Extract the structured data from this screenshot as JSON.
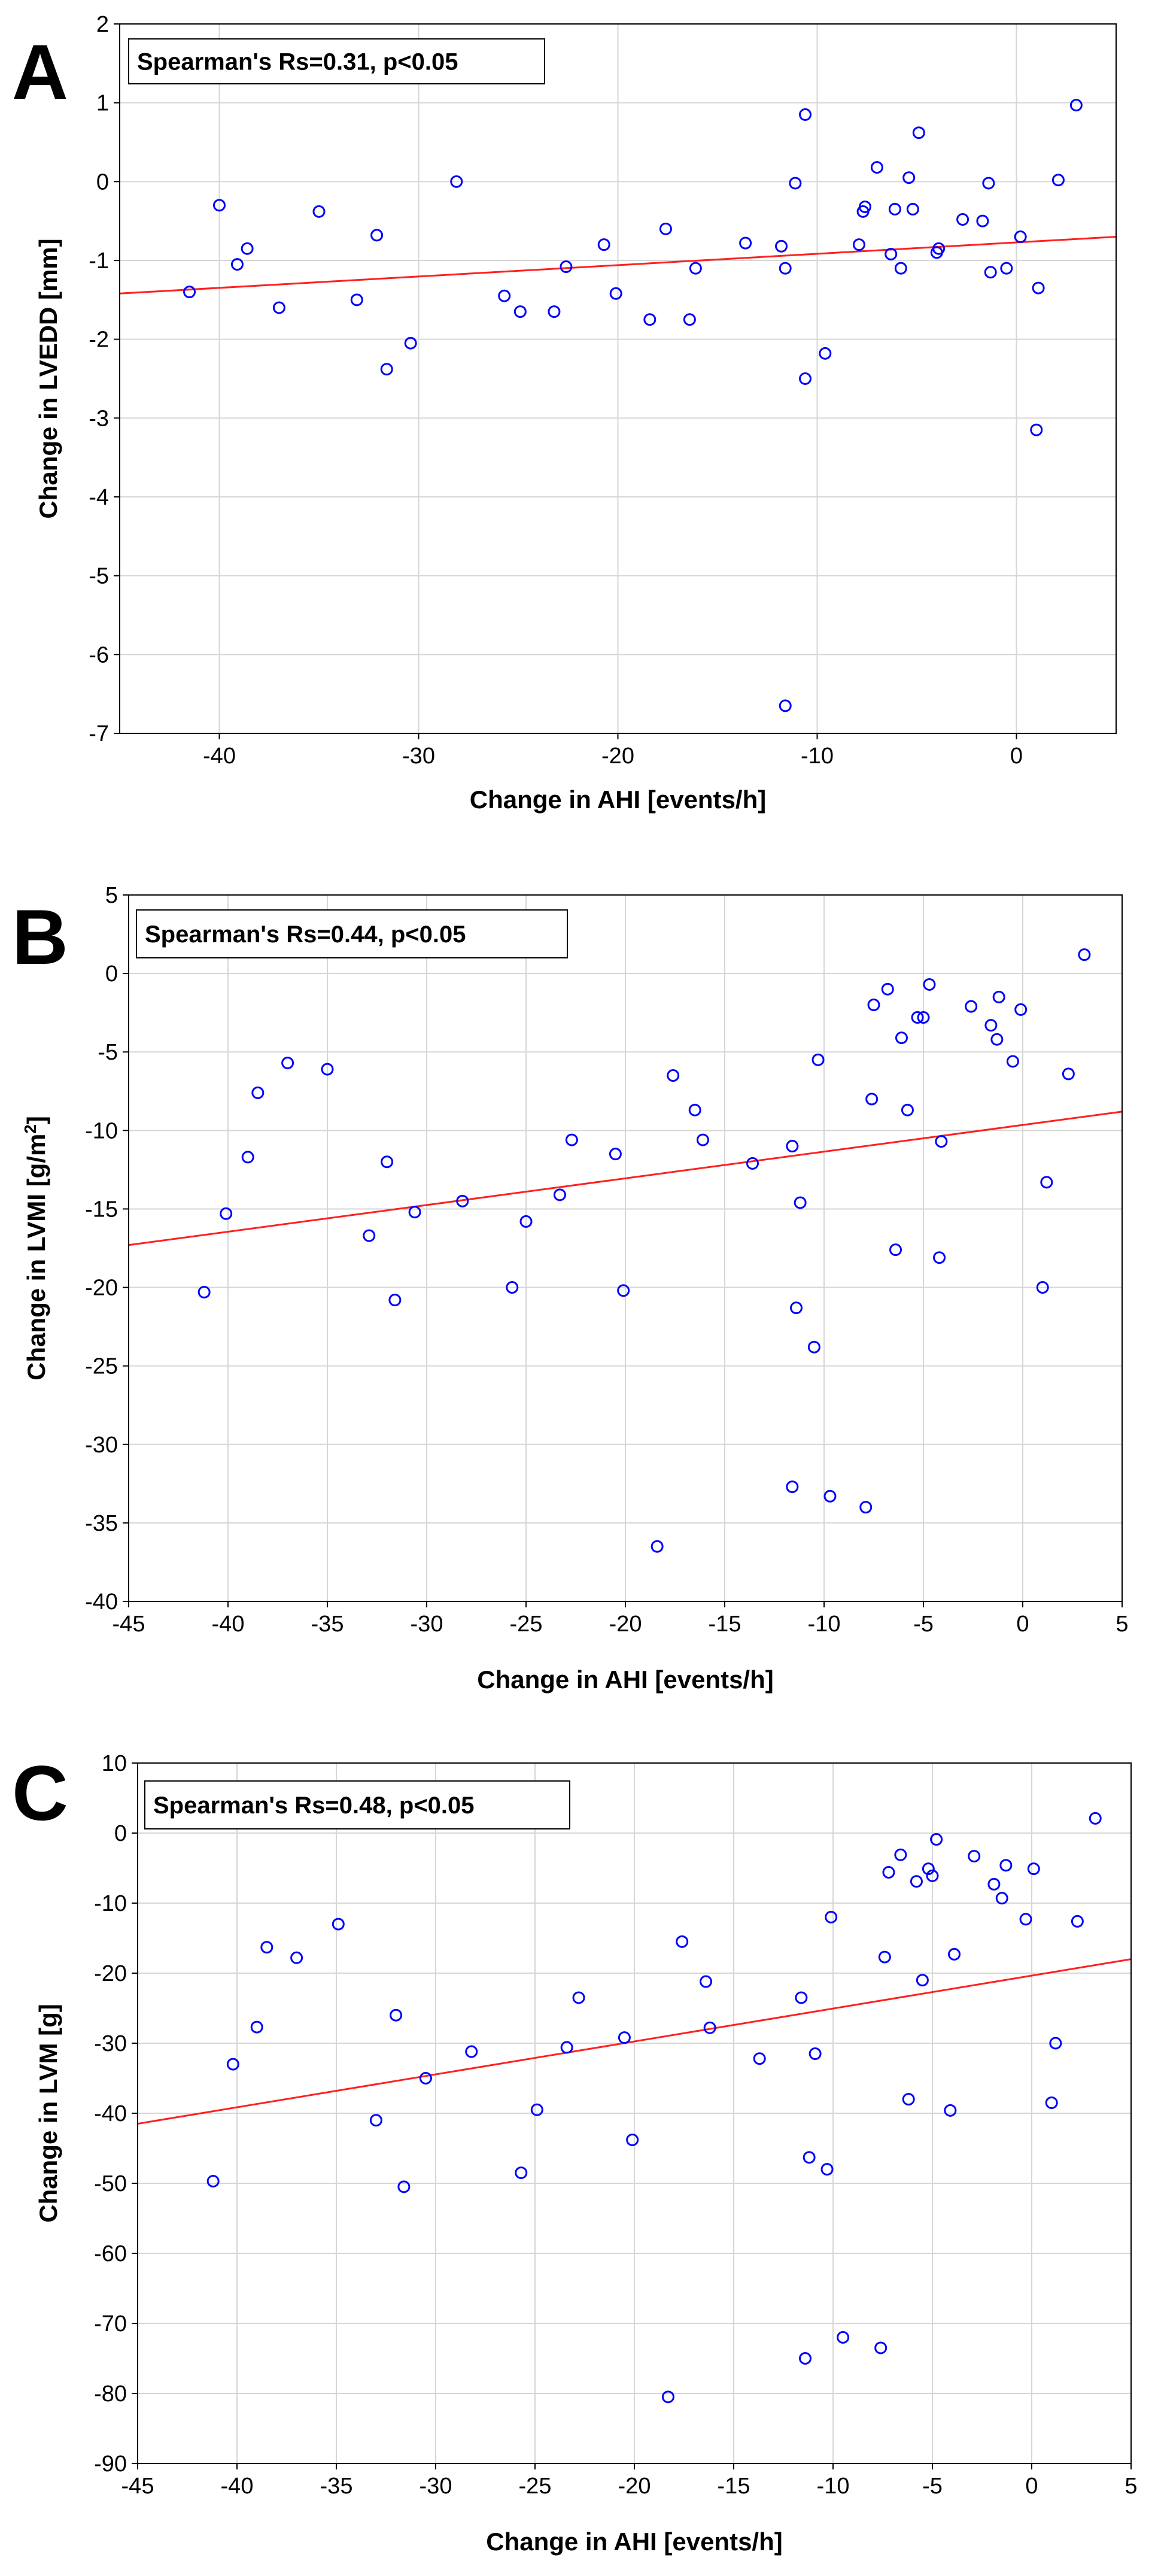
{
  "chart_data": [
    {
      "type": "scatter",
      "panel": "A",
      "annotation": "Spearman's Rs=0.31, p<0.05",
      "xlabel": "Change in AHI [events/h]",
      "ylabel": "Change in LVEDD [mm]",
      "xlim": [
        -45,
        5
      ],
      "ylim": [
        -7,
        2
      ],
      "xticks": [
        -40,
        -30,
        -20,
        -10,
        0
      ],
      "yticks": [
        -7,
        -6,
        -5,
        -4,
        -3,
        -2,
        -1,
        0,
        1,
        2
      ],
      "trend": {
        "x1": -45,
        "y1": -1.42,
        "x2": 5,
        "y2": -0.7
      },
      "points": [
        [
          -41.5,
          -1.4
        ],
        [
          -40,
          -0.3
        ],
        [
          -39.1,
          -1.05
        ],
        [
          -38.6,
          -0.85
        ],
        [
          -37,
          -1.6
        ],
        [
          -35,
          -0.38
        ],
        [
          -33.1,
          -1.5
        ],
        [
          -32.1,
          -0.68
        ],
        [
          -31.6,
          -2.38
        ],
        [
          -30.4,
          -2.05
        ],
        [
          -28.1,
          0.0
        ],
        [
          -25.7,
          -1.45
        ],
        [
          -24.9,
          -1.65
        ],
        [
          -23.2,
          -1.65
        ],
        [
          -22.6,
          -1.08
        ],
        [
          -20.7,
          -0.8
        ],
        [
          -20.1,
          -1.42
        ],
        [
          -18.4,
          -1.75
        ],
        [
          -17.6,
          -0.6
        ],
        [
          -16.4,
          -1.75
        ],
        [
          -16.1,
          -1.1
        ],
        [
          -13.6,
          -0.78
        ],
        [
          -11.8,
          -0.82
        ],
        [
          -11.6,
          -1.1
        ],
        [
          -11.6,
          -6.65
        ],
        [
          -11.1,
          -0.02
        ],
        [
          -10.6,
          0.85
        ],
        [
          -10.6,
          -2.5
        ],
        [
          -9.6,
          -2.18
        ],
        [
          -7.9,
          -0.8
        ],
        [
          -7.7,
          -0.38
        ],
        [
          -7.6,
          -0.32
        ],
        [
          -7,
          0.18
        ],
        [
          -6.3,
          -0.92
        ],
        [
          -6.1,
          -0.35
        ],
        [
          -5.8,
          -1.1
        ],
        [
          -5.4,
          0.05
        ],
        [
          -5.2,
          -0.35
        ],
        [
          -4.9,
          0.62
        ],
        [
          -4,
          -0.9
        ],
        [
          -3.9,
          -0.85
        ],
        [
          -2.7,
          -0.48
        ],
        [
          -1.7,
          -0.5
        ],
        [
          -1.4,
          -0.02
        ],
        [
          -1.3,
          -1.15
        ],
        [
          -0.5,
          -1.1
        ],
        [
          0.2,
          -0.7
        ],
        [
          1.1,
          -1.35
        ],
        [
          1.0,
          -3.15
        ],
        [
          2.1,
          0.02
        ],
        [
          3.0,
          0.97
        ]
      ]
    },
    {
      "type": "scatter",
      "panel": "B",
      "annotation": "Spearman's Rs=0.44, p<0.05",
      "xlabel": "Change in AHI [events/h]",
      "ylabel": "Change in LVMI [g/m",
      "ylabel_sup": "2",
      "ylabel_end": "]",
      "xlim": [
        -45,
        5
      ],
      "ylim": [
        -40,
        5
      ],
      "xticks": [
        -45,
        -40,
        -35,
        -30,
        -25,
        -20,
        -15,
        -10,
        -5,
        0,
        5
      ],
      "yticks": [
        -40,
        -35,
        -30,
        -25,
        -20,
        -15,
        -10,
        -5,
        0,
        5
      ],
      "trend": {
        "x1": -45,
        "y1": -17.3,
        "x2": 5,
        "y2": -8.8
      },
      "points": [
        [
          -41.2,
          -20.3
        ],
        [
          -40.1,
          -15.3
        ],
        [
          -39,
          -11.7
        ],
        [
          -38.5,
          -7.6
        ],
        [
          -37,
          -5.7
        ],
        [
          -35,
          -6.1
        ],
        [
          -32.9,
          -16.7
        ],
        [
          -32,
          -12
        ],
        [
          -31.6,
          -20.8
        ],
        [
          -30.6,
          -15.2
        ],
        [
          -28.2,
          -14.5
        ],
        [
          -25.7,
          -20
        ],
        [
          -25,
          -15.8
        ],
        [
          -23.3,
          -14.1
        ],
        [
          -22.7,
          -10.6
        ],
        [
          -20.5,
          -11.5
        ],
        [
          -20.1,
          -20.2
        ],
        [
          -18.4,
          -36.5
        ],
        [
          -17.6,
          -6.5
        ],
        [
          -16.5,
          -8.7
        ],
        [
          -16.1,
          -10.6
        ],
        [
          -13.6,
          -12.1
        ],
        [
          -11.6,
          -11
        ],
        [
          -11.6,
          -32.7
        ],
        [
          -11.4,
          -21.3
        ],
        [
          -11.2,
          -14.6
        ],
        [
          -10.5,
          -23.8
        ],
        [
          -10.3,
          -5.5
        ],
        [
          -9.7,
          -33.3
        ],
        [
          -7.9,
          -34
        ],
        [
          -7.6,
          -8
        ],
        [
          -7.5,
          -2
        ],
        [
          -6.8,
          -1
        ],
        [
          -6.4,
          -17.6
        ],
        [
          -6.1,
          -4.1
        ],
        [
          -5.8,
          -8.7
        ],
        [
          -5.3,
          -2.8
        ],
        [
          -5,
          -2.8
        ],
        [
          -4.7,
          -0.7
        ],
        [
          -4.1,
          -10.7
        ],
        [
          -4.2,
          -18.1
        ],
        [
          -2.6,
          -2.1
        ],
        [
          -1.6,
          -3.3
        ],
        [
          -1.3,
          -4.2
        ],
        [
          -1.2,
          -1.5
        ],
        [
          -0.5,
          -5.6
        ],
        [
          -0.1,
          -2.3
        ],
        [
          1.2,
          -13.3
        ],
        [
          1.0,
          -20
        ],
        [
          2.3,
          -6.4
        ],
        [
          3.1,
          1.2
        ]
      ]
    },
    {
      "type": "scatter",
      "panel": "C",
      "annotation": "Spearman's Rs=0.48, p<0.05",
      "xlabel": "Change in AHI [events/h]",
      "ylabel": "Change in LVM [g]",
      "xlim": [
        -45,
        5
      ],
      "ylim": [
        -90,
        10
      ],
      "xticks": [
        -45,
        -40,
        -35,
        -30,
        -25,
        -20,
        -15,
        -10,
        -5,
        0,
        5
      ],
      "yticks": [
        -90,
        -80,
        -70,
        -60,
        -50,
        -40,
        -30,
        -20,
        -10,
        0,
        10
      ],
      "trend": {
        "x1": -45,
        "y1": -41.5,
        "x2": 5,
        "y2": -18
      },
      "points": [
        [
          -41.2,
          -49.7
        ],
        [
          -40.2,
          -33
        ],
        [
          -39,
          -27.7
        ],
        [
          -38.5,
          -16.3
        ],
        [
          -37,
          -17.8
        ],
        [
          -34.9,
          -13
        ],
        [
          -33,
          -41
        ],
        [
          -32,
          -26
        ],
        [
          -31.6,
          -50.5
        ],
        [
          -30.5,
          -35
        ],
        [
          -28.2,
          -31.2
        ],
        [
          -25.7,
          -48.5
        ],
        [
          -24.9,
          -39.5
        ],
        [
          -23.4,
          -30.6
        ],
        [
          -22.8,
          -23.5
        ],
        [
          -20.5,
          -29.2
        ],
        [
          -20.1,
          -43.8
        ],
        [
          -18.3,
          -80.5
        ],
        [
          -17.6,
          -15.5
        ],
        [
          -16.4,
          -21.2
        ],
        [
          -16.2,
          -27.8
        ],
        [
          -13.7,
          -32.2
        ],
        [
          -11.6,
          -23.5
        ],
        [
          -11.4,
          -75
        ],
        [
          -11.2,
          -46.3
        ],
        [
          -10.9,
          -31.5
        ],
        [
          -10.3,
          -48
        ],
        [
          -10.1,
          -12
        ],
        [
          -9.5,
          -72
        ],
        [
          -7.6,
          -73.5
        ],
        [
          -7.4,
          -17.7
        ],
        [
          -7.2,
          -5.6
        ],
        [
          -6.6,
          -3.1
        ],
        [
          -6.2,
          -38
        ],
        [
          -5.8,
          -6.9
        ],
        [
          -5.5,
          -21
        ],
        [
          -5.2,
          -5.1
        ],
        [
          -5,
          -6.1
        ],
        [
          -4.8,
          -0.9
        ],
        [
          -4.1,
          -39.6
        ],
        [
          -3.9,
          -17.3
        ],
        [
          -2.9,
          -3.3
        ],
        [
          -1.9,
          -7.3
        ],
        [
          -1.5,
          -9.3
        ],
        [
          -1.3,
          -4.6
        ],
        [
          -0.3,
          -12.3
        ],
        [
          0.1,
          -5.1
        ],
        [
          1.2,
          -30
        ],
        [
          1.0,
          -38.5
        ],
        [
          2.3,
          -12.6
        ],
        [
          3.2,
          2.1
        ]
      ]
    }
  ]
}
